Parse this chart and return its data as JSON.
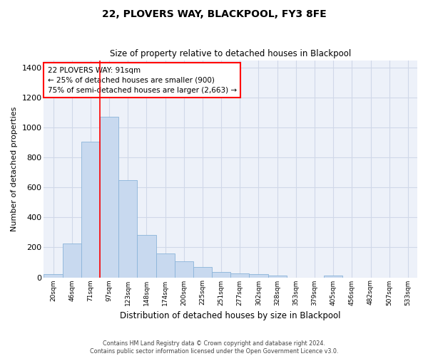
{
  "title": "22, PLOVERS WAY, BLACKPOOL, FY3 8FE",
  "subtitle": "Size of property relative to detached houses in Blackpool",
  "xlabel": "Distribution of detached houses by size in Blackpool",
  "ylabel": "Number of detached properties",
  "x_tick_labels": [
    "20sqm",
    "46sqm",
    "71sqm",
    "97sqm",
    "123sqm",
    "148sqm",
    "174sqm",
    "200sqm",
    "225sqm",
    "251sqm",
    "277sqm",
    "302sqm",
    "328sqm",
    "353sqm",
    "379sqm",
    "405sqm",
    "456sqm",
    "482sqm",
    "507sqm",
    "533sqm"
  ],
  "all_bar_values": [
    20,
    225,
    905,
    1070,
    648,
    282,
    158,
    105,
    68,
    35,
    27,
    20,
    13,
    0,
    0,
    10,
    0,
    0,
    0,
    0
  ],
  "bar_color": "#c8d9ef",
  "bar_edgecolor": "#8ab4d9",
  "red_line_index": 3,
  "annotation_text": "22 PLOVERS WAY: 91sqm\n← 25% of detached houses are smaller (900)\n75% of semi-detached houses are larger (2,663) →",
  "ylim": [
    0,
    1450
  ],
  "yticks": [
    0,
    200,
    400,
    600,
    800,
    1000,
    1200,
    1400
  ],
  "grid_color": "#d0d8e8",
  "bg_color": "#edf1f9",
  "footer_line1": "Contains HM Land Registry data © Crown copyright and database right 2024.",
  "footer_line2": "Contains public sector information licensed under the Open Government Licence v3.0."
}
